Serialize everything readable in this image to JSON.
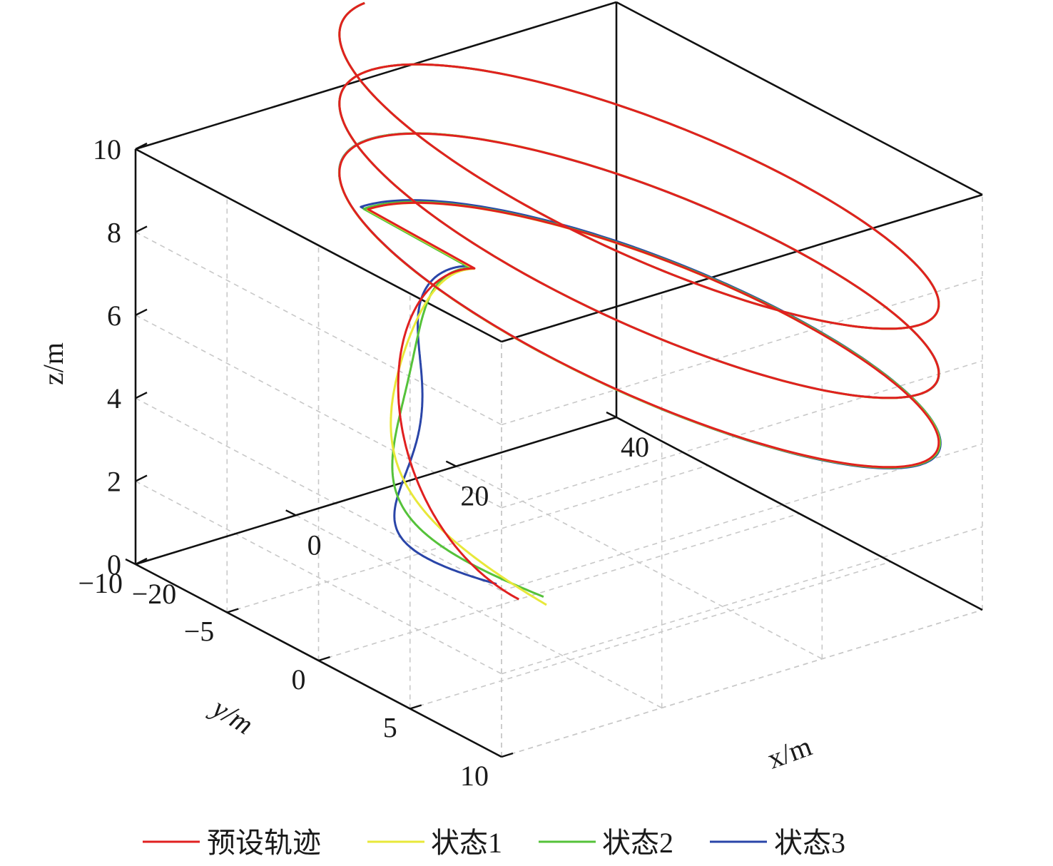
{
  "chart_data": {
    "type": "line",
    "projection": "3d",
    "title": "",
    "xlabel": "x/m",
    "ylabel": "y/m",
    "zlabel": "z/m",
    "xlim": [
      -20,
      40
    ],
    "ylim": [
      -10,
      10
    ],
    "zlim": [
      0,
      10
    ],
    "x_ticks": [
      "−20",
      "0",
      "20",
      "40"
    ],
    "y_ticks": [
      "10",
      "5",
      "0",
      "−5",
      "−10"
    ],
    "z_ticks": [
      "0",
      "2",
      "4",
      "6",
      "8",
      "10"
    ],
    "grid": true,
    "legend_position": "bottom",
    "series": [
      {
        "name": "预设轨迹",
        "color": "#e02020",
        "deviation": "none"
      },
      {
        "name": "状态1",
        "color": "#e8e83a",
        "deviation": "small"
      },
      {
        "name": "状态2",
        "color": "#55c23a",
        "deviation": "medium"
      },
      {
        "name": "状态3",
        "color": "#2a45a8",
        "deviation": "large"
      }
    ],
    "trajectory": {
      "start": [
        0,
        0,
        0
      ],
      "climb_end_z": 5,
      "spiral_center": [
        20,
        0
      ],
      "spiral_radius": 15,
      "spiral_z_range": [
        5,
        10
      ],
      "spiral_turns": 3
    }
  }
}
